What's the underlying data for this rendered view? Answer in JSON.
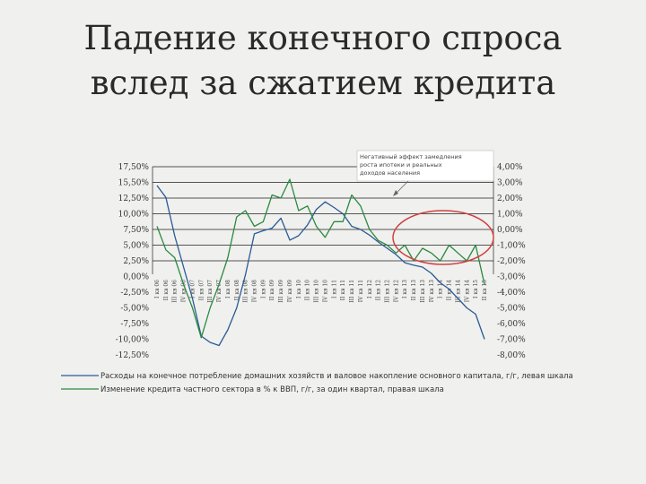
{
  "slide": {
    "title_line1": "Падение конечного спроса",
    "title_line2": "вслед за сжатием кредита"
  },
  "chart_data": {
    "type": "line",
    "y_left": {
      "tick_labels": [
        "17,50%",
        "15,50%",
        "12,50%",
        "10,00%",
        "7,50%",
        "5,00%",
        "2,50%",
        "0,00%",
        "-2,50%",
        "-5,00%",
        "-7,50%",
        "-10,00%",
        "-12,50%"
      ]
    },
    "y_right": {
      "tick_labels": [
        "4,00%",
        "3,00%",
        "2,00%",
        "1,00%",
        "0,00%",
        "-1,00%",
        "-2,00%",
        "-3,00%",
        "-4,00%",
        "-5,00%",
        "-6,00%",
        "-7,00%",
        "-8,00%"
      ]
    },
    "ylim_left": [
      -12.5,
      17.5
    ],
    "ylim_right": [
      -8,
      4
    ],
    "x_labels": [
      "I кв 06",
      "II кв 06",
      "III кв 06",
      "IV кв 06",
      "I кв 07",
      "II кв 07",
      "III кв 07",
      "IV кв 07",
      "I кв 08",
      "II кв 08",
      "III кв 08",
      "IV кв 08",
      "I кв 09",
      "II кв 09",
      "III кв 09",
      "IV кв 09",
      "I кв 10",
      "II кв 10",
      "III кв 10",
      "IV кв 10",
      "I кв 11",
      "II кв 11",
      "III кв 11",
      "IV кв 11",
      "I кв 12",
      "II кв 12",
      "III кв 12",
      "IV кв 12",
      "I кв 13",
      "II кв 13",
      "III кв 13",
      "IV кв 13",
      "I кв 14",
      "II кв 14",
      "III кв 14",
      "IV кв 14",
      "I кв 15",
      "II кв 15"
    ],
    "series": [
      {
        "name": "Расходы на конечное потребление домашних хозяйств и валовое накопление основного капитала, г/г, левая шкала",
        "color": "#2a5a95",
        "axis": "left",
        "values": [
          14.5,
          12.6,
          6.5,
          1.5,
          -3.5,
          -9.5,
          -10.5,
          -11,
          -8.5,
          -5,
          0.3,
          6.8,
          7.3,
          7.7,
          9.3,
          5.8,
          6.5,
          8.2,
          10.7,
          11.9,
          11.0,
          10.0,
          8.0,
          7.5,
          6.6,
          5.5,
          4.5,
          3.5,
          2.2,
          1.8,
          1.5,
          0.5,
          -1.0,
          -2.0,
          -3.5,
          -5.0,
          -6.0,
          -10.0
        ]
      },
      {
        "name": "Изменение кредита частного сектора в % к ВВП, г/г, за один квартал, правая шкала",
        "color": "#2a8a40",
        "axis": "right",
        "values": [
          0.2,
          -1.3,
          -1.8,
          -3.5,
          -5.0,
          -6.9,
          -5.0,
          -3.5,
          -1.8,
          0.8,
          1.2,
          0.2,
          0.5,
          2.2,
          2.0,
          3.2,
          1.2,
          1.5,
          0.2,
          -0.5,
          0.5,
          0.5,
          2.2,
          1.5,
          0.0,
          -0.7,
          -1.0,
          -1.5,
          -1.0,
          -2.0,
          -1.2,
          -1.5,
          -2.0,
          -1.0,
          -1.5,
          -2.0,
          -1.0,
          -3.5
        ]
      }
    ],
    "annotation": "Негативный эффект замедления роста ипотеки и реальных доходов населения",
    "highlight": "recent-quarters-ellipse",
    "grid": true,
    "legend_position": "bottom"
  }
}
